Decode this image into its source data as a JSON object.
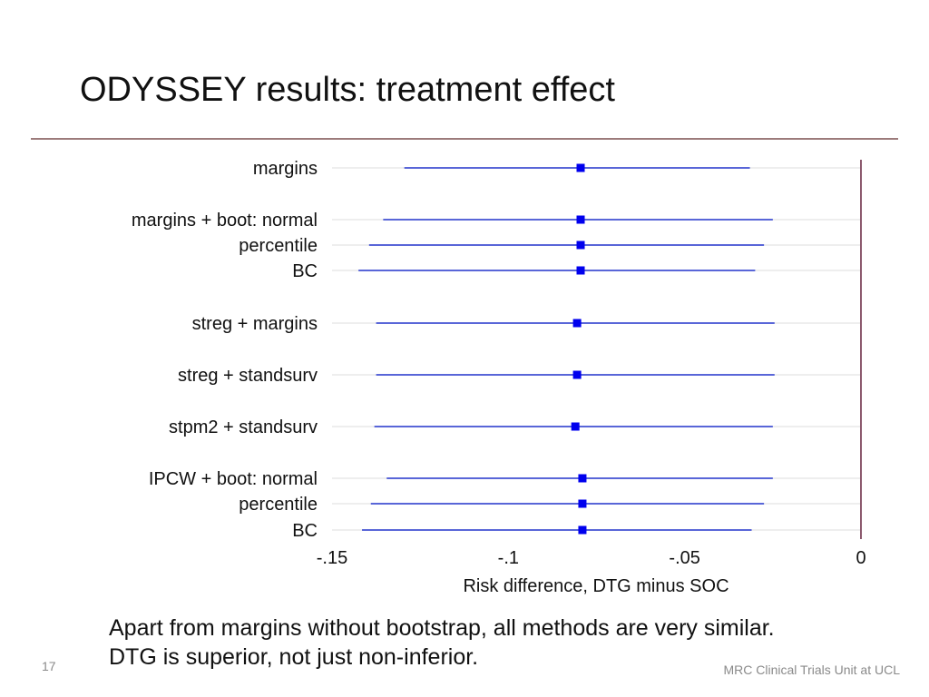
{
  "slide": {
    "title": "ODYSSEY results: treatment effect",
    "notes": [
      "Apart from margins without bootstrap, all methods are very similar.",
      "DTG is superior, not just non-inferior."
    ],
    "page_number": "17",
    "organization": "MRC Clinical Trials Unit at UCL"
  },
  "colors": {
    "title_rule": "#9c7b7b",
    "reference_line": "#8c5a6e",
    "point": "#0000ee",
    "ci_line": "#2233cc",
    "gridline": "#dddddd",
    "text": "#111111",
    "footer_text": "#8a8a8a"
  },
  "chart_data": {
    "type": "forest",
    "xlabel": "Risk difference, DTG minus SOC",
    "ylabel": "",
    "xlim": [
      -0.15,
      0
    ],
    "xticks": [
      {
        "value": -0.15,
        "label": "-.15"
      },
      {
        "value": -0.1,
        "label": "-.1"
      },
      {
        "value": -0.05,
        "label": "-.05"
      },
      {
        "value": 0,
        "label": "0"
      }
    ],
    "reference_line": 0,
    "grid": "horizontal",
    "rows": [
      {
        "label": "margins",
        "estimate": -0.0795,
        "lower": -0.1295,
        "upper": -0.0315
      },
      {
        "label": "margins + boot: normal",
        "estimate": -0.0795,
        "lower": -0.1355,
        "upper": -0.025
      },
      {
        "label": "percentile",
        "estimate": -0.0795,
        "lower": -0.1395,
        "upper": -0.0275
      },
      {
        "label": "BC",
        "estimate": -0.0795,
        "lower": -0.1425,
        "upper": -0.03
      },
      {
        "label": "streg + margins",
        "estimate": -0.0805,
        "lower": -0.1375,
        "upper": -0.0245
      },
      {
        "label": "streg + standsurv",
        "estimate": -0.0805,
        "lower": -0.1375,
        "upper": -0.0245
      },
      {
        "label": "stpm2 + standsurv",
        "estimate": -0.081,
        "lower": -0.138,
        "upper": -0.025
      },
      {
        "label": "IPCW + boot: normal",
        "estimate": -0.079,
        "lower": -0.1345,
        "upper": -0.025
      },
      {
        "label": "percentile",
        "estimate": -0.079,
        "lower": -0.139,
        "upper": -0.0275
      },
      {
        "label": "BC",
        "estimate": -0.079,
        "lower": -0.1415,
        "upper": -0.031
      }
    ]
  }
}
